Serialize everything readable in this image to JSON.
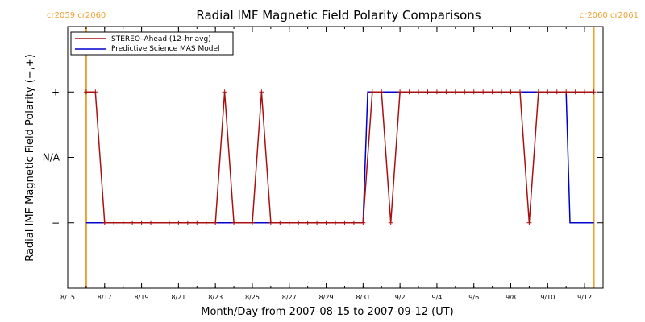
{
  "chart_data": {
    "type": "line",
    "title": "Radial IMF Magnetic Field Polarity Comparisons",
    "xlabel": "Month/Day from 2007-08-15 to 2007-09-12 (UT)",
    "ylabel": "Radial IMF Magnetic Field Polarity (−,+)",
    "xlim": [
      "2007-08-15",
      "2007-09-13"
    ],
    "x_ticks": [
      {
        "date": "2007-08-15",
        "label": "8/15"
      },
      {
        "date": "2007-08-17",
        "label": "8/17"
      },
      {
        "date": "2007-08-19",
        "label": "8/19"
      },
      {
        "date": "2007-08-21",
        "label": "8/21"
      },
      {
        "date": "2007-08-23",
        "label": "8/23"
      },
      {
        "date": "2007-08-25",
        "label": "8/25"
      },
      {
        "date": "2007-08-27",
        "label": "8/27"
      },
      {
        "date": "2007-08-29",
        "label": "8/29"
      },
      {
        "date": "2007-08-31",
        "label": "8/31"
      },
      {
        "date": "2007-09-02",
        "label": "9/2"
      },
      {
        "date": "2007-09-04",
        "label": "9/4"
      },
      {
        "date": "2007-09-06",
        "label": "9/6"
      },
      {
        "date": "2007-09-08",
        "label": "9/8"
      },
      {
        "date": "2007-09-10",
        "label": "9/10"
      },
      {
        "date": "2007-09-12",
        "label": "9/12"
      }
    ],
    "y_ticks": [
      {
        "value": 1,
        "label": "+"
      },
      {
        "value": 0,
        "label": "N/A"
      },
      {
        "value": -1,
        "label": "−"
      }
    ],
    "ylim": [
      -2,
      2
    ],
    "carrington_markers": [
      {
        "date": "2007-08-16 00:00",
        "label": "cr2059 cr2060",
        "align": "left"
      },
      {
        "date": "2007-09-12 12:00",
        "label": "cr2060 cr2061",
        "align": "right"
      }
    ],
    "legend": {
      "placement": "top-left"
    },
    "series": [
      {
        "name": "STEREO–Ahead (12–hr avg)",
        "color": "#aa1010",
        "marker": "plus",
        "points": [
          [
            "2007-08-16 00:00",
            1
          ],
          [
            "2007-08-16 12:00",
            1
          ],
          [
            "2007-08-17 00:00",
            -1
          ],
          [
            "2007-08-17 12:00",
            -1
          ],
          [
            "2007-08-18 00:00",
            -1
          ],
          [
            "2007-08-18 12:00",
            -1
          ],
          [
            "2007-08-19 00:00",
            -1
          ],
          [
            "2007-08-19 12:00",
            -1
          ],
          [
            "2007-08-20 00:00",
            -1
          ],
          [
            "2007-08-20 12:00",
            -1
          ],
          [
            "2007-08-21 00:00",
            -1
          ],
          [
            "2007-08-21 12:00",
            -1
          ],
          [
            "2007-08-22 00:00",
            -1
          ],
          [
            "2007-08-22 12:00",
            -1
          ],
          [
            "2007-08-23 00:00",
            -1
          ],
          [
            "2007-08-23 12:00",
            1
          ],
          [
            "2007-08-24 00:00",
            -1
          ],
          [
            "2007-08-24 12:00",
            -1
          ],
          [
            "2007-08-25 00:00",
            -1
          ],
          [
            "2007-08-25 12:00",
            1
          ],
          [
            "2007-08-26 00:00",
            -1
          ],
          [
            "2007-08-26 12:00",
            -1
          ],
          [
            "2007-08-27 00:00",
            -1
          ],
          [
            "2007-08-27 12:00",
            -1
          ],
          [
            "2007-08-28 00:00",
            -1
          ],
          [
            "2007-08-28 12:00",
            -1
          ],
          [
            "2007-08-29 00:00",
            -1
          ],
          [
            "2007-08-29 12:00",
            -1
          ],
          [
            "2007-08-30 00:00",
            -1
          ],
          [
            "2007-08-30 12:00",
            -1
          ],
          [
            "2007-08-31 00:00",
            -1
          ],
          [
            "2007-08-31 12:00",
            1
          ],
          [
            "2007-09-01 00:00",
            1
          ],
          [
            "2007-09-01 12:00",
            -1
          ],
          [
            "2007-09-02 00:00",
            1
          ],
          [
            "2007-09-02 12:00",
            1
          ],
          [
            "2007-09-03 00:00",
            1
          ],
          [
            "2007-09-03 12:00",
            1
          ],
          [
            "2007-09-04 00:00",
            1
          ],
          [
            "2007-09-04 12:00",
            1
          ],
          [
            "2007-09-05 00:00",
            1
          ],
          [
            "2007-09-05 12:00",
            1
          ],
          [
            "2007-09-06 00:00",
            1
          ],
          [
            "2007-09-06 12:00",
            1
          ],
          [
            "2007-09-07 00:00",
            1
          ],
          [
            "2007-09-07 12:00",
            1
          ],
          [
            "2007-09-08 00:00",
            1
          ],
          [
            "2007-09-08 12:00",
            1
          ],
          [
            "2007-09-09 00:00",
            -1
          ],
          [
            "2007-09-09 12:00",
            1
          ],
          [
            "2007-09-10 00:00",
            1
          ],
          [
            "2007-09-10 12:00",
            1
          ],
          [
            "2007-09-11 00:00",
            1
          ],
          [
            "2007-09-11 12:00",
            1
          ],
          [
            "2007-09-12 00:00",
            1
          ],
          [
            "2007-09-12 12:00",
            1
          ]
        ]
      },
      {
        "name": "Predictive Science MAS Model",
        "color": "#0000cc",
        "marker": "none",
        "points": [
          [
            "2007-08-16 00:00",
            -1
          ],
          [
            "2007-08-31 00:00",
            -1
          ],
          [
            "2007-08-31 06:00",
            1
          ],
          [
            "2007-09-11 00:00",
            1
          ],
          [
            "2007-09-11 05:00",
            -1
          ],
          [
            "2007-09-12 12:00",
            -1
          ]
        ]
      }
    ]
  }
}
